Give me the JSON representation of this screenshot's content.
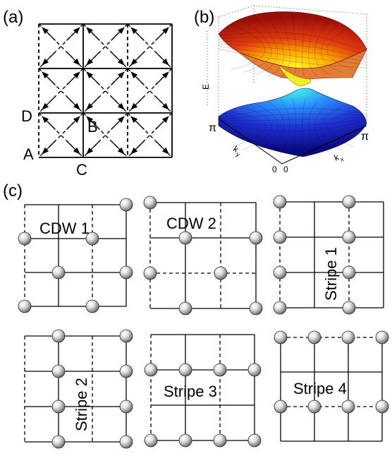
{
  "panel_labels": {
    "a": "(a)",
    "b": "(b)",
    "c": "(c)"
  },
  "panel_a": {
    "point_labels": {
      "A": "A",
      "B": "B",
      "C": "C",
      "D": "D"
    }
  },
  "panel_b": {
    "axis_labels": {
      "energy": "E",
      "kx": "k",
      "kx_sub": "x",
      "ky": "k",
      "ky_sub": "y"
    },
    "tick_labels": {
      "pi_left": "π",
      "pi_right": "π",
      "zero_left": "0",
      "zero_right": "0"
    }
  },
  "panel_c": {
    "patterns": {
      "cdw1": "CDW 1",
      "cdw2": "CDW 2",
      "stripe1": "Stripe 1",
      "stripe2": "Stripe 2",
      "stripe3": "Stripe 3",
      "stripe4": "Stripe 4"
    }
  },
  "colors": {
    "line": "#000000",
    "sphere_light": "#f2f2f2",
    "sphere_dark": "#5a5a5a",
    "band_upper": "#d93a1a",
    "band_lower": "#2236b8"
  }
}
